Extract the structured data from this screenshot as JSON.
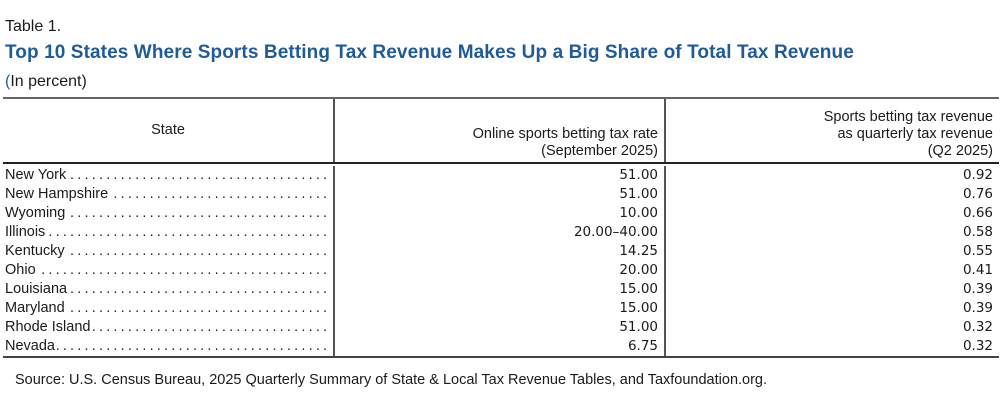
{
  "table": {
    "label": "Table 1.",
    "title": "Top 10 States Where Sports Betting Tax Revenue Makes Up a Big Share of Total Tax Revenue",
    "subtitle_open_paren": "(",
    "subtitle": "In percent)",
    "columns": [
      {
        "lines": [
          "State"
        ]
      },
      {
        "lines": [
          "Online sports betting tax rate",
          "(September 2025)"
        ]
      },
      {
        "lines": [
          "Sports betting tax revenue",
          "as quarterly tax revenue",
          "(Q2 2025)"
        ]
      }
    ],
    "leader": "................................................................",
    "rows": [
      {
        "state": "New York",
        "rate": "51.00",
        "share": "0.92"
      },
      {
        "state": "New Hampshire",
        "rate": "51.00",
        "share": "0.76"
      },
      {
        "state": "Wyoming",
        "rate": "10.00",
        "share": "0.66"
      },
      {
        "state": "Illinois",
        "rate": "20.00–40.00",
        "share": "0.58"
      },
      {
        "state": "Kentucky",
        "rate": "14.25",
        "share": "0.55"
      },
      {
        "state": "Ohio",
        "rate": "20.00",
        "share": "0.41"
      },
      {
        "state": "Louisiana",
        "rate": "15.00",
        "share": "0.39"
      },
      {
        "state": "Maryland",
        "rate": "15.00",
        "share": "0.39"
      },
      {
        "state": "Rhode Island",
        "rate": "51.00",
        "share": "0.32"
      },
      {
        "state": "Nevada",
        "rate": "6.75",
        "share": "0.32"
      }
    ],
    "source": "Source: U.S. Census Bureau, 2025 Quarterly Summary of State & Local Tax Revenue Tables, and Taxfoundation.org."
  },
  "colors": {
    "title": "#1f5b99",
    "text": "#1a1a1a",
    "rule": "#555555"
  }
}
